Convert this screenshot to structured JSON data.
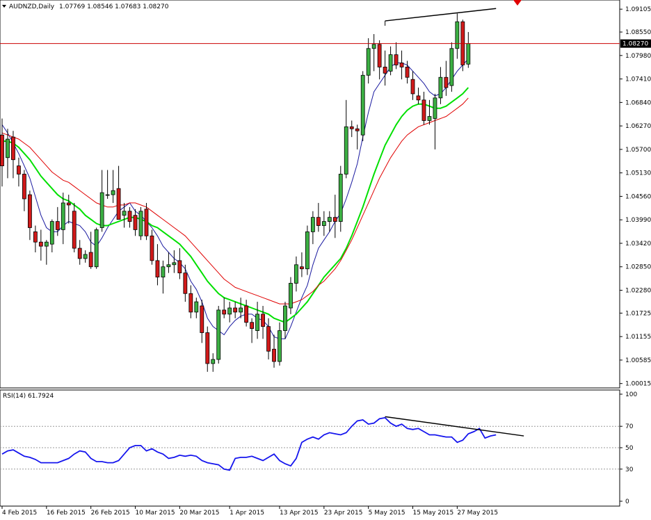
{
  "header": {
    "symbol_label": "AUDNZD,Daily",
    "ohlc_label": "1.07769 1.08546 1.07683 1.08270"
  },
  "colors": {
    "bull_candle": "#3cb043",
    "bear_candle": "#d11a1a",
    "candle_outline": "#000000",
    "ma_fast": "#1a1aa0",
    "ma_mid": "#00e000",
    "ma_slow": "#e00000",
    "rsi_line": "#1515ee",
    "price_line": "#cc0000",
    "trendline": "#000000",
    "marker": "#e00000"
  },
  "chart_data": [
    {
      "type": "candlestick",
      "title": "AUDNZD,Daily",
      "ylim": [
        1.0001,
        1.0926
      ],
      "yticks": [
        "1.09105",
        "1.08550",
        "1.07980",
        "1.07410",
        "1.06840",
        "1.06270",
        "1.05700",
        "1.05130",
        "1.04560",
        "1.03990",
        "1.03420",
        "1.02850",
        "1.02280",
        "1.01725",
        "1.01155",
        "1.00585",
        "1.00015"
      ],
      "current_price_label": "1.08270",
      "current_price": 1.0827,
      "xticks": [
        {
          "label": "4 Feb 2015",
          "index": 0
        },
        {
          "label": "16 Feb 2015",
          "index": 8
        },
        {
          "label": "26 Feb 2015",
          "index": 16
        },
        {
          "label": "10 Mar 2015",
          "index": 24
        },
        {
          "label": "20 Mar 2015",
          "index": 32
        },
        {
          "label": "1 Apr 2015",
          "index": 41
        },
        {
          "label": "13 Apr 2015",
          "index": 50
        },
        {
          "label": "23 Apr 2015",
          "index": 58
        },
        {
          "label": "5 May 2015",
          "index": 66
        },
        {
          "label": "15 May 2015",
          "index": 74
        },
        {
          "label": "27 May 2015",
          "index": 82
        }
      ],
      "candles": [
        {
          "o": 1.0605,
          "h": 1.0645,
          "l": 1.048,
          "c": 1.053
        },
        {
          "o": 1.055,
          "h": 1.062,
          "l": 1.05,
          "c": 1.0595
        },
        {
          "o": 1.06,
          "h": 1.0615,
          "l": 1.05,
          "c": 1.0545
        },
        {
          "o": 1.053,
          "h": 1.055,
          "l": 1.048,
          "c": 1.051
        },
        {
          "o": 1.051,
          "h": 1.052,
          "l": 1.042,
          "c": 1.045
        },
        {
          "o": 1.046,
          "h": 1.047,
          "l": 1.035,
          "c": 1.038
        },
        {
          "o": 1.037,
          "h": 1.0385,
          "l": 1.032,
          "c": 1.0345
        },
        {
          "o": 1.0345,
          "h": 1.0375,
          "l": 1.03,
          "c": 1.0335
        },
        {
          "o": 1.0335,
          "h": 1.035,
          "l": 1.029,
          "c": 1.0345
        },
        {
          "o": 1.034,
          "h": 1.04,
          "l": 1.032,
          "c": 1.0395
        },
        {
          "o": 1.0395,
          "h": 1.043,
          "l": 1.036,
          "c": 1.0375
        },
        {
          "o": 1.0375,
          "h": 1.0465,
          "l": 1.034,
          "c": 1.044
        },
        {
          "o": 1.044,
          "h": 1.046,
          "l": 1.039,
          "c": 1.0435
        },
        {
          "o": 1.042,
          "h": 1.044,
          "l": 1.032,
          "c": 1.033
        },
        {
          "o": 1.033,
          "h": 1.035,
          "l": 1.029,
          "c": 1.0305
        },
        {
          "o": 1.0305,
          "h": 1.0325,
          "l": 1.0295,
          "c": 1.0315
        },
        {
          "o": 1.032,
          "h": 1.037,
          "l": 1.028,
          "c": 1.0285
        },
        {
          "o": 1.0285,
          "h": 1.038,
          "l": 1.028,
          "c": 1.0375
        },
        {
          "o": 1.038,
          "h": 1.052,
          "l": 1.037,
          "c": 1.0465
        },
        {
          "o": 1.046,
          "h": 1.052,
          "l": 1.045,
          "c": 1.046
        },
        {
          "o": 1.046,
          "h": 1.052,
          "l": 1.044,
          "c": 1.047
        },
        {
          "o": 1.0475,
          "h": 1.053,
          "l": 1.04,
          "c": 1.04
        },
        {
          "o": 1.041,
          "h": 1.044,
          "l": 1.038,
          "c": 1.042
        },
        {
          "o": 1.042,
          "h": 1.043,
          "l": 1.038,
          "c": 1.0395
        },
        {
          "o": 1.041,
          "h": 1.0425,
          "l": 1.036,
          "c": 1.0375
        },
        {
          "o": 1.036,
          "h": 1.043,
          "l": 1.035,
          "c": 1.042
        },
        {
          "o": 1.0425,
          "h": 1.044,
          "l": 1.035,
          "c": 1.036
        },
        {
          "o": 1.036,
          "h": 1.0375,
          "l": 1.029,
          "c": 1.03
        },
        {
          "o": 1.03,
          "h": 1.034,
          "l": 1.024,
          "c": 1.026
        },
        {
          "o": 1.026,
          "h": 1.03,
          "l": 1.022,
          "c": 1.0285
        },
        {
          "o": 1.0285,
          "h": 1.032,
          "l": 1.027,
          "c": 1.029
        },
        {
          "o": 1.029,
          "h": 1.0325,
          "l": 1.027,
          "c": 1.0295
        },
        {
          "o": 1.03,
          "h": 1.033,
          "l": 1.0255,
          "c": 1.027
        },
        {
          "o": 1.027,
          "h": 1.029,
          "l": 1.02,
          "c": 1.022
        },
        {
          "o": 1.022,
          "h": 1.024,
          "l": 1.016,
          "c": 1.0175
        },
        {
          "o": 1.0175,
          "h": 1.021,
          "l": 1.016,
          "c": 1.02
        },
        {
          "o": 1.019,
          "h": 1.0205,
          "l": 1.01,
          "c": 1.0125
        },
        {
          "o": 1.0125,
          "h": 1.014,
          "l": 1.003,
          "c": 1.005
        },
        {
          "o": 1.005,
          "h": 1.0075,
          "l": 1.003,
          "c": 1.006
        },
        {
          "o": 1.006,
          "h": 1.019,
          "l": 1.005,
          "c": 1.018
        },
        {
          "o": 1.018,
          "h": 1.021,
          "l": 1.016,
          "c": 1.017
        },
        {
          "o": 1.017,
          "h": 1.02,
          "l": 1.015,
          "c": 1.0185
        },
        {
          "o": 1.0185,
          "h": 1.02,
          "l": 1.016,
          "c": 1.0175
        },
        {
          "o": 1.0175,
          "h": 1.021,
          "l": 1.016,
          "c": 1.0185
        },
        {
          "o": 1.019,
          "h": 1.0205,
          "l": 1.014,
          "c": 1.015
        },
        {
          "o": 1.015,
          "h": 1.016,
          "l": 1.01,
          "c": 1.0135
        },
        {
          "o": 1.013,
          "h": 1.02,
          "l": 1.011,
          "c": 1.017
        },
        {
          "o": 1.017,
          "h": 1.019,
          "l": 1.011,
          "c": 1.014
        },
        {
          "o": 1.014,
          "h": 1.016,
          "l": 1.006,
          "c": 1.008
        },
        {
          "o": 1.0085,
          "h": 1.012,
          "l": 1.004,
          "c": 1.0055
        },
        {
          "o": 1.0055,
          "h": 1.015,
          "l": 1.0045,
          "c": 1.013
        },
        {
          "o": 1.013,
          "h": 1.02,
          "l": 1.011,
          "c": 1.019
        },
        {
          "o": 1.0185,
          "h": 1.026,
          "l": 1.017,
          "c": 1.0245
        },
        {
          "o": 1.0245,
          "h": 1.031,
          "l": 1.0225,
          "c": 1.029
        },
        {
          "o": 1.0285,
          "h": 1.032,
          "l": 1.026,
          "c": 1.028
        },
        {
          "o": 1.028,
          "h": 1.0385,
          "l": 1.0265,
          "c": 1.037
        },
        {
          "o": 1.037,
          "h": 1.042,
          "l": 1.034,
          "c": 1.0405
        },
        {
          "o": 1.0405,
          "h": 1.044,
          "l": 1.037,
          "c": 1.0385
        },
        {
          "o": 1.0385,
          "h": 1.042,
          "l": 1.036,
          "c": 1.0395
        },
        {
          "o": 1.0395,
          "h": 1.042,
          "l": 1.037,
          "c": 1.0405
        },
        {
          "o": 1.0405,
          "h": 1.046,
          "l": 1.0355,
          "c": 1.0395
        },
        {
          "o": 1.0395,
          "h": 1.053,
          "l": 1.037,
          "c": 1.051
        },
        {
          "o": 1.051,
          "h": 1.069,
          "l": 1.05,
          "c": 1.0625
        },
        {
          "o": 1.0625,
          "h": 1.064,
          "l": 1.06,
          "c": 1.062
        },
        {
          "o": 1.062,
          "h": 1.063,
          "l": 1.057,
          "c": 1.0615
        },
        {
          "o": 1.0605,
          "h": 1.076,
          "l": 1.059,
          "c": 1.075
        },
        {
          "o": 1.075,
          "h": 1.084,
          "l": 1.073,
          "c": 1.0815
        },
        {
          "o": 1.0815,
          "h": 1.085,
          "l": 1.076,
          "c": 1.0825
        },
        {
          "o": 1.0825,
          "h": 1.0835,
          "l": 1.074,
          "c": 1.077
        },
        {
          "o": 1.077,
          "h": 1.081,
          "l": 1.0725,
          "c": 1.0755
        },
        {
          "o": 1.076,
          "h": 1.082,
          "l": 1.075,
          "c": 1.08
        },
        {
          "o": 1.08,
          "h": 1.083,
          "l": 1.0765,
          "c": 1.0775
        },
        {
          "o": 1.078,
          "h": 1.081,
          "l": 1.074,
          "c": 1.077
        },
        {
          "o": 1.077,
          "h": 1.0785,
          "l": 1.073,
          "c": 1.0745
        },
        {
          "o": 1.074,
          "h": 1.076,
          "l": 1.069,
          "c": 1.0705
        },
        {
          "o": 1.07,
          "h": 1.072,
          "l": 1.068,
          "c": 1.069
        },
        {
          "o": 1.069,
          "h": 1.071,
          "l": 1.063,
          "c": 1.064
        },
        {
          "o": 1.064,
          "h": 1.069,
          "l": 1.063,
          "c": 1.065
        },
        {
          "o": 1.0645,
          "h": 1.0705,
          "l": 1.057,
          "c": 1.0695
        },
        {
          "o": 1.0695,
          "h": 1.077,
          "l": 1.068,
          "c": 1.0745
        },
        {
          "o": 1.0745,
          "h": 1.0785,
          "l": 1.07,
          "c": 1.072
        },
        {
          "o": 1.0725,
          "h": 1.083,
          "l": 1.071,
          "c": 1.0815
        },
        {
          "o": 1.0815,
          "h": 1.09,
          "l": 1.079,
          "c": 1.088
        },
        {
          "o": 1.088,
          "h": 1.0885,
          "l": 1.076,
          "c": 1.0775
        },
        {
          "o": 1.0777,
          "h": 1.0855,
          "l": 1.0768,
          "c": 1.0827
        }
      ],
      "moving_averages": [
        {
          "period": 5,
          "color": "#1a1aa0",
          "values": [
            1.063,
            1.061,
            1.0585,
            1.056,
            1.053,
            1.05,
            1.0455,
            1.041,
            1.038,
            1.037,
            1.037,
            1.0385,
            1.0395,
            1.039,
            1.0385,
            1.037,
            1.0345,
            1.0335,
            1.0355,
            1.038,
            1.04,
            1.042,
            1.043,
            1.044,
            1.042,
            1.041,
            1.0395,
            1.038,
            1.036,
            1.0335,
            1.032,
            1.0305,
            1.0295,
            1.028,
            1.025,
            1.023,
            1.02,
            1.016,
            1.014,
            1.013,
            1.012,
            1.014,
            1.0155,
            1.0165,
            1.017,
            1.017,
            1.016,
            1.0155,
            1.014,
            1.0115,
            1.011,
            1.011,
            1.014,
            1.0175,
            1.021,
            1.024,
            1.029,
            1.033,
            1.035,
            1.037,
            1.0395,
            1.0415,
            1.045,
            1.049,
            1.0535,
            1.06,
            1.066,
            1.071,
            1.073,
            1.075,
            1.077,
            1.078,
            1.078,
            1.0775,
            1.076,
            1.0745,
            1.073,
            1.071,
            1.07,
            1.0705,
            1.072,
            1.074,
            1.076,
            1.0775,
            1.079
          ]
        },
        {
          "period": 13,
          "color": "#00e000",
          "values": [
            1.059,
            1.059,
            1.0585,
            1.0575,
            1.056,
            1.0545,
            1.0525,
            1.0505,
            1.049,
            1.0475,
            1.046,
            1.045,
            1.0445,
            1.0435,
            1.0425,
            1.041,
            1.04,
            1.039,
            1.0385,
            1.0385,
            1.039,
            1.0395,
            1.04,
            1.0405,
            1.0405,
            1.04,
            1.0395,
            1.0385,
            1.038,
            1.037,
            1.036,
            1.035,
            1.034,
            1.0325,
            1.031,
            1.029,
            1.027,
            1.025,
            1.0235,
            1.022,
            1.021,
            1.0205,
            1.02,
            1.0195,
            1.019,
            1.0185,
            1.018,
            1.0175,
            1.017,
            1.016,
            1.0155,
            1.015,
            1.016,
            1.017,
            1.0185,
            1.02,
            1.022,
            1.024,
            1.026,
            1.0275,
            1.029,
            1.0305,
            1.033,
            1.036,
            1.0395,
            1.043,
            1.047,
            1.051,
            1.0545,
            1.058,
            1.0605,
            1.063,
            1.065,
            1.0665,
            1.0675,
            1.068,
            1.068,
            1.0675,
            1.067,
            1.067,
            1.0675,
            1.0685,
            1.0695,
            1.0705,
            1.072
          ]
        },
        {
          "period": 21,
          "color": "#e00000",
          "values": [
            1.061,
            1.0605,
            1.06,
            1.0595,
            1.0585,
            1.0575,
            1.056,
            1.0545,
            1.053,
            1.0515,
            1.0505,
            1.0495,
            1.049,
            1.048,
            1.047,
            1.046,
            1.045,
            1.044,
            1.0435,
            1.043,
            1.043,
            1.0435,
            1.0435,
            1.044,
            1.044,
            1.0435,
            1.043,
            1.042,
            1.041,
            1.04,
            1.039,
            1.038,
            1.037,
            1.036,
            1.0345,
            1.033,
            1.0315,
            1.03,
            1.0285,
            1.027,
            1.0255,
            1.0245,
            1.0235,
            1.023,
            1.0225,
            1.022,
            1.0215,
            1.021,
            1.0205,
            1.02,
            1.0195,
            1.0195,
            1.0195,
            1.02,
            1.0205,
            1.0215,
            1.0225,
            1.024,
            1.025,
            1.0265,
            1.028,
            1.03,
            1.0325,
            1.035,
            1.038,
            1.041,
            1.044,
            1.047,
            1.05,
            1.0525,
            1.055,
            1.057,
            1.059,
            1.0605,
            1.0615,
            1.0625,
            1.063,
            1.0635,
            1.064,
            1.0645,
            1.065,
            1.066,
            1.067,
            1.068,
            1.0695
          ]
        }
      ],
      "trendline": {
        "x0_index": 69,
        "y0": 1.0882,
        "x1_index": 89,
        "y1": 1.0912
      }
    },
    {
      "type": "line",
      "title": "RSI(14) 61.7924",
      "ylim": [
        0,
        100
      ],
      "yticks": [
        "100",
        "70",
        "50",
        "30",
        "0"
      ],
      "levels": [
        70,
        50,
        30
      ],
      "values": [
        44,
        47,
        48,
        45,
        42,
        41,
        39,
        36,
        36,
        36,
        36,
        38,
        40,
        44,
        47,
        46,
        40,
        37,
        37,
        36,
        36,
        38,
        44,
        50,
        52,
        52,
        47,
        49,
        46,
        44,
        40,
        41,
        43,
        42,
        43,
        42,
        38,
        36,
        35,
        34,
        30,
        29,
        40,
        41,
        41,
        42,
        40,
        38,
        41,
        44,
        38,
        35,
        33,
        40,
        55,
        58,
        60,
        58,
        62,
        64,
        63,
        62,
        64,
        70,
        75,
        76,
        72,
        73,
        77,
        78,
        73,
        70,
        72,
        68,
        67,
        68,
        65,
        62,
        62,
        61,
        60,
        60,
        55,
        57,
        63,
        65,
        68,
        59,
        61,
        62
      ],
      "trendline": {
        "x0_index": 69,
        "y0": 79,
        "x1_index": 94,
        "y1": 61
      }
    }
  ]
}
